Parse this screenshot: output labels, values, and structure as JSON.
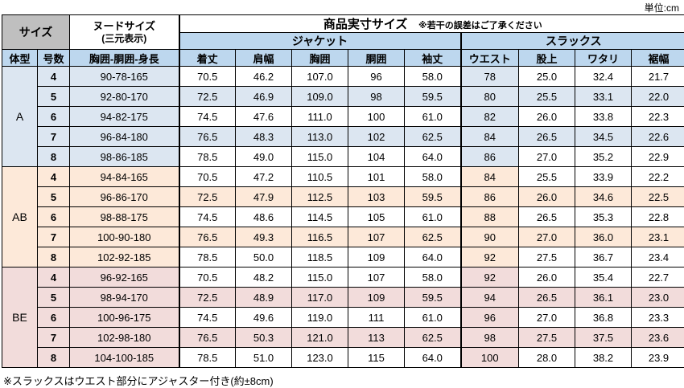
{
  "meta": {
    "unit_label": "単位:cm",
    "footnote": "※スラックスはウエスト部分にアジャスター付き(約±8cm)"
  },
  "header": {
    "size_label": "サイズ",
    "nude_line1": "ヌードサイズ",
    "nude_line2": "(三元表示)",
    "product_size_label": "商品実寸サイズ",
    "product_size_note": "※若干の誤差はご了承ください",
    "jacket_label": "ジャケット",
    "slacks_label": "スラックス",
    "col_body_type": "体型",
    "col_size_no": "号数",
    "col_nude": "胸囲-胴囲-身長",
    "jacket_cols": [
      "着丈",
      "肩幅",
      "胸囲",
      "胴囲",
      "袖丈"
    ],
    "slacks_cols": [
      "ウエスト",
      "股上",
      "ワタリ",
      "裾幅"
    ]
  },
  "colors": {
    "header_blue": "#bdd7ee",
    "size_gray": "#bfbfbf",
    "group_a_tint": "#dce6f1",
    "group_ab_tint": "#fde9d9",
    "group_be_tint": "#f2dcdb",
    "border": "#000000"
  },
  "chart_data": {
    "type": "table",
    "title": "商品実寸サイズ",
    "unit": "cm",
    "columns": [
      "体型",
      "号数",
      "胸囲-胴囲-身長",
      "着丈",
      "肩幅",
      "胸囲",
      "胴囲",
      "袖丈",
      "ウエスト",
      "股上",
      "ワタリ",
      "裾幅"
    ],
    "groups": [
      {
        "body_type": "A",
        "color": "#dce6f1",
        "rows": [
          {
            "size_no": "4",
            "nude": "90-78-165",
            "jacket": [
              "70.5",
              "46.2",
              "107.0",
              "96",
              "58.0"
            ],
            "slacks": [
              "78",
              "25.0",
              "32.4",
              "21.7"
            ]
          },
          {
            "size_no": "5",
            "nude": "92-80-170",
            "jacket": [
              "72.5",
              "46.9",
              "109.0",
              "98",
              "59.5"
            ],
            "slacks": [
              "80",
              "25.5",
              "33.1",
              "22.0"
            ]
          },
          {
            "size_no": "6",
            "nude": "94-82-175",
            "jacket": [
              "74.5",
              "47.6",
              "111.0",
              "100",
              "61.0"
            ],
            "slacks": [
              "82",
              "26.0",
              "33.8",
              "22.3"
            ]
          },
          {
            "size_no": "7",
            "nude": "96-84-180",
            "jacket": [
              "76.5",
              "48.3",
              "113.0",
              "102",
              "62.5"
            ],
            "slacks": [
              "84",
              "26.5",
              "34.5",
              "22.6"
            ]
          },
          {
            "size_no": "8",
            "nude": "98-86-185",
            "jacket": [
              "78.5",
              "49.0",
              "115.0",
              "104",
              "64.0"
            ],
            "slacks": [
              "86",
              "27.0",
              "35.2",
              "22.9"
            ]
          }
        ]
      },
      {
        "body_type": "AB",
        "color": "#fde9d9",
        "rows": [
          {
            "size_no": "4",
            "nude": "94-84-165",
            "jacket": [
              "70.5",
              "47.2",
              "110.5",
              "101",
              "58.0"
            ],
            "slacks": [
              "84",
              "25.5",
              "33.9",
              "22.2"
            ]
          },
          {
            "size_no": "5",
            "nude": "96-86-170",
            "jacket": [
              "72.5",
              "47.9",
              "112.5",
              "103",
              "59.5"
            ],
            "slacks": [
              "86",
              "26.0",
              "34.6",
              "22.5"
            ]
          },
          {
            "size_no": "6",
            "nude": "98-88-175",
            "jacket": [
              "74.5",
              "48.6",
              "114.5",
              "105",
              "61.0"
            ],
            "slacks": [
              "88",
              "26.5",
              "35.3",
              "22.8"
            ]
          },
          {
            "size_no": "7",
            "nude": "100-90-180",
            "jacket": [
              "76.5",
              "49.3",
              "116.5",
              "107",
              "62.5"
            ],
            "slacks": [
              "90",
              "27.0",
              "36.0",
              "23.1"
            ]
          },
          {
            "size_no": "8",
            "nude": "102-92-185",
            "jacket": [
              "78.5",
              "50.0",
              "118.5",
              "109",
              "64.0"
            ],
            "slacks": [
              "92",
              "27.5",
              "36.7",
              "23.4"
            ]
          }
        ]
      },
      {
        "body_type": "BE",
        "color": "#f2dcdb",
        "rows": [
          {
            "size_no": "4",
            "nude": "96-92-165",
            "jacket": [
              "70.5",
              "48.2",
              "115.0",
              "107",
              "58.0"
            ],
            "slacks": [
              "92",
              "26.0",
              "35.4",
              "22.7"
            ]
          },
          {
            "size_no": "5",
            "nude": "98-94-170",
            "jacket": [
              "72.5",
              "48.9",
              "117.0",
              "109",
              "59.5"
            ],
            "slacks": [
              "94",
              "26.5",
              "36.1",
              "23.0"
            ]
          },
          {
            "size_no": "6",
            "nude": "100-96-175",
            "jacket": [
              "74.5",
              "49.6",
              "119.0",
              "111",
              "61.0"
            ],
            "slacks": [
              "96",
              "27.0",
              "36.8",
              "23.3"
            ]
          },
          {
            "size_no": "7",
            "nude": "102-98-180",
            "jacket": [
              "76.5",
              "50.3",
              "121.0",
              "113",
              "62.5"
            ],
            "slacks": [
              "98",
              "27.5",
              "37.5",
              "23.6"
            ]
          },
          {
            "size_no": "8",
            "nude": "104-100-185",
            "jacket": [
              "78.5",
              "51.0",
              "123.0",
              "115",
              "64.0"
            ],
            "slacks": [
              "100",
              "28.0",
              "38.2",
              "23.9"
            ]
          }
        ]
      }
    ]
  }
}
